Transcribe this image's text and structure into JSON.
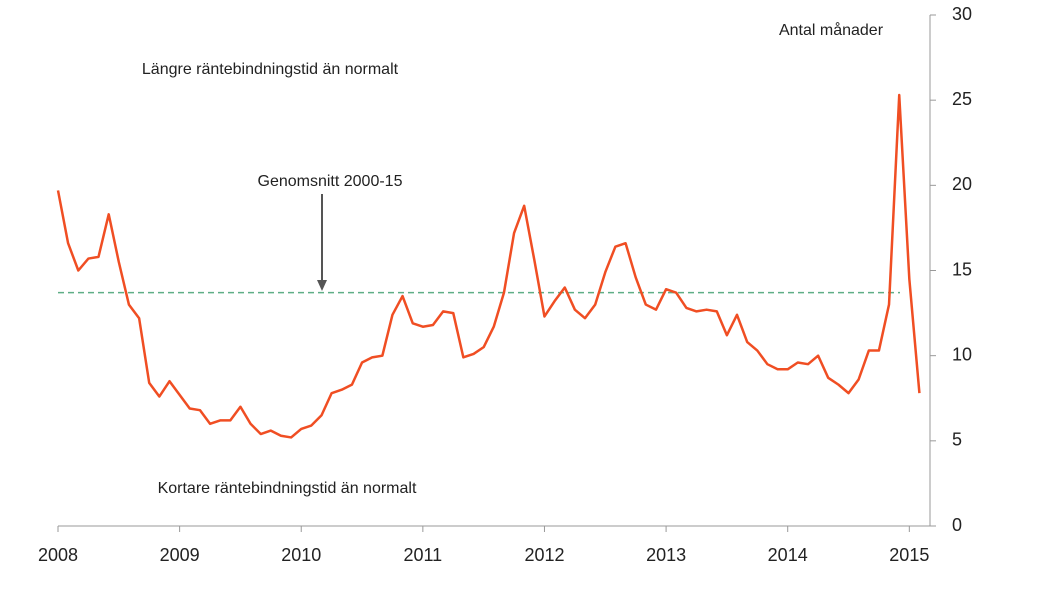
{
  "chart_data": {
    "type": "line",
    "y_unit_label": "Antal månader",
    "annotations": {
      "upper": "Längre räntebindningstid än normalt",
      "lower": "Kortare räntebindningstid än normalt",
      "reference": "Genomsnitt 2000-15"
    },
    "reference_value": 13.7,
    "reference_color": "#5fae86",
    "x": [
      2008,
      2008.083,
      2008.167,
      2008.25,
      2008.333,
      2008.417,
      2008.5,
      2008.583,
      2008.667,
      2008.75,
      2008.833,
      2008.917,
      2009,
      2009.083,
      2009.167,
      2009.25,
      2009.333,
      2009.417,
      2009.5,
      2009.583,
      2009.667,
      2009.75,
      2009.833,
      2009.917,
      2010,
      2010.083,
      2010.167,
      2010.25,
      2010.333,
      2010.417,
      2010.5,
      2010.583,
      2010.667,
      2010.75,
      2010.833,
      2010.917,
      2011,
      2011.083,
      2011.167,
      2011.25,
      2011.333,
      2011.417,
      2011.5,
      2011.583,
      2011.667,
      2011.75,
      2011.833,
      2011.917,
      2012,
      2012.083,
      2012.167,
      2012.25,
      2012.333,
      2012.417,
      2012.5,
      2012.583,
      2012.667,
      2012.75,
      2012.833,
      2012.917,
      2013,
      2013.083,
      2013.167,
      2013.25,
      2013.333,
      2013.417,
      2013.5,
      2013.583,
      2013.667,
      2013.75,
      2013.833,
      2013.917,
      2014,
      2014.083,
      2014.167,
      2014.25,
      2014.333,
      2014.417,
      2014.5,
      2014.583,
      2014.667,
      2014.75,
      2014.833,
      2014.917,
      2015,
      2015.083
    ],
    "series": [
      {
        "color": "#f04e23",
        "values": [
          19.7,
          16.6,
          15.0,
          15.7,
          15.8,
          18.3,
          15.5,
          13.0,
          12.2,
          8.4,
          7.6,
          8.5,
          7.7,
          6.9,
          6.8,
          6.0,
          6.2,
          6.2,
          7.0,
          6.0,
          5.4,
          5.6,
          5.3,
          5.2,
          5.7,
          5.9,
          6.5,
          7.8,
          8.0,
          8.3,
          9.6,
          9.9,
          10.0,
          12.4,
          13.5,
          11.9,
          11.7,
          11.8,
          12.6,
          12.5,
          9.9,
          10.1,
          10.5,
          11.7,
          13.7,
          17.2,
          18.8,
          15.6,
          12.3,
          13.2,
          14.0,
          12.7,
          12.2,
          13.0,
          14.9,
          16.4,
          16.6,
          14.6,
          13.0,
          12.7,
          13.9,
          13.7,
          12.8,
          12.6,
          12.7,
          12.6,
          11.2,
          12.4,
          10.8,
          10.3,
          9.5,
          9.2,
          9.2,
          9.6,
          9.5,
          10.0,
          8.7,
          8.3,
          7.8,
          8.6,
          10.3,
          10.3,
          13.0,
          25.3,
          14.5,
          7.8
        ]
      }
    ],
    "xlim": [
      2008,
      2015.17
    ],
    "xticks": [
      2008,
      2009,
      2010,
      2011,
      2012,
      2013,
      2014,
      2015
    ],
    "ylim": [
      0,
      30
    ],
    "yticks": [
      0,
      5,
      10,
      15,
      20,
      25,
      30
    ]
  }
}
